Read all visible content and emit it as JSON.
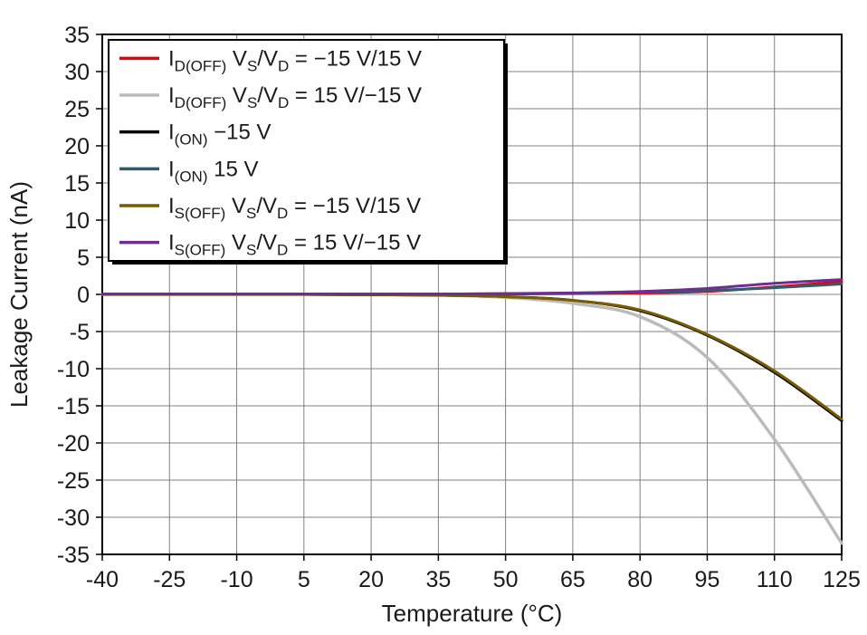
{
  "chart_data": {
    "type": "line",
    "title": "",
    "xlabel": "Temperature (°C)",
    "ylabel": "Leakage Current (nA)",
    "xlim": [
      -40,
      125
    ],
    "ylim": [
      -35,
      35
    ],
    "xticks": [
      -40,
      -25,
      -10,
      5,
      20,
      35,
      50,
      65,
      80,
      95,
      110,
      125
    ],
    "yticks": [
      -35,
      -30,
      -25,
      -20,
      -15,
      -10,
      -5,
      0,
      5,
      10,
      15,
      20,
      25,
      30,
      35
    ],
    "grid": true,
    "grid_color": "#808080",
    "axis_color": "#000000",
    "legend_position": "top-left",
    "x": [
      -40,
      -25,
      -10,
      5,
      20,
      35,
      50,
      65,
      80,
      95,
      110,
      125
    ],
    "series": [
      {
        "name": "ID(OFF) VS/VD = −15 V/15 V",
        "color": "#e8000b",
        "values": [
          0.05,
          0.05,
          0.05,
          0.05,
          0.05,
          0.05,
          0.05,
          0.1,
          0.2,
          0.4,
          1.0,
          1.7
        ],
        "label_parts": [
          [
            "t",
            "I"
          ],
          [
            "s",
            "D(OFF)"
          ],
          [
            "t",
            "  V"
          ],
          [
            "s",
            "S"
          ],
          [
            "t",
            "/V"
          ],
          [
            "s",
            "D"
          ],
          [
            "t",
            " = −15 V/15 V"
          ]
        ]
      },
      {
        "name": "ID(OFF) VS/VD = 15 V/−15 V",
        "color": "#bbbbbb",
        "values": [
          0,
          0,
          0,
          0,
          -0.05,
          -0.1,
          -0.4,
          -1.2,
          -3.0,
          -8.5,
          -19.5,
          -33.5
        ],
        "label_parts": [
          [
            "t",
            "I"
          ],
          [
            "s",
            "D(OFF)"
          ],
          [
            "t",
            " V"
          ],
          [
            "s",
            "S"
          ],
          [
            "t",
            "/V"
          ],
          [
            "s",
            "D"
          ],
          [
            "t",
            " = 15 V/−15 V"
          ]
        ]
      },
      {
        "name": "I(ON) −15 V",
        "color": "#000000",
        "values": [
          0,
          0,
          0,
          0,
          -0.05,
          -0.1,
          -0.3,
          -0.8,
          -2.2,
          -5.5,
          -10.5,
          -17.0
        ],
        "label_parts": [
          [
            "t",
            "I"
          ],
          [
            "s",
            "(ON)"
          ],
          [
            "t",
            " −15 V"
          ]
        ]
      },
      {
        "name": "I(ON) 15 V",
        "color": "#2e5e6e",
        "values": [
          0.05,
          0.05,
          0.05,
          0.05,
          0.05,
          0.05,
          0.1,
          0.15,
          0.3,
          0.5,
          0.9,
          1.4
        ],
        "label_parts": [
          [
            "t",
            "I"
          ],
          [
            "s",
            "(ON)"
          ],
          [
            "t",
            " 15 V"
          ]
        ]
      },
      {
        "name": "IS(OFF) VS/VD = −15 V/15 V",
        "color": "#7a5c00",
        "values": [
          0,
          0,
          0,
          0,
          -0.05,
          -0.1,
          -0.3,
          -0.8,
          -2.1,
          -5.4,
          -10.3,
          -16.8
        ],
        "label_parts": [
          [
            "t",
            "I"
          ],
          [
            "s",
            "S(OFF)"
          ],
          [
            "t",
            " V"
          ],
          [
            "s",
            "S"
          ],
          [
            "t",
            "/V"
          ],
          [
            "s",
            "D"
          ],
          [
            "t",
            " = −15 V/15 V"
          ]
        ]
      },
      {
        "name": "IS(OFF) VS/VD = 15 V/−15 V",
        "color": "#6f2c91",
        "values": [
          0.05,
          0.05,
          0.05,
          0.05,
          0.05,
          0.05,
          0.1,
          0.2,
          0.4,
          0.8,
          1.5,
          2.0
        ],
        "label_parts": [
          [
            "t",
            "I"
          ],
          [
            "s",
            "S(OFF)"
          ],
          [
            "t",
            "  V"
          ],
          [
            "s",
            "S"
          ],
          [
            "t",
            "/V"
          ],
          [
            "s",
            "D"
          ],
          [
            "t",
            " = 15 V/−15 V"
          ]
        ]
      }
    ]
  }
}
